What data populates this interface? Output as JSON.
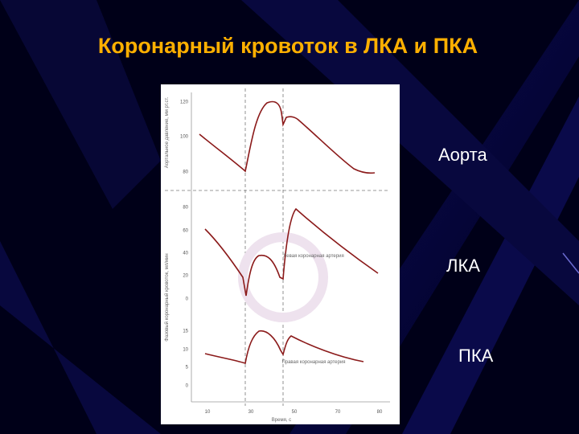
{
  "slide": {
    "title": "Коронарный кровоток  в ЛКА и ПКА",
    "labels": [
      "Аорта",
      "ЛКА",
      "ПКА"
    ]
  },
  "figure": {
    "y_label_top": "Аортальное давление, мм рт.ст.",
    "y_label_bottom": "Фазовый коронарный кровоток, мл/мин",
    "x_label": "Время, с",
    "aorta_ticks": [
      "120",
      "100",
      "80"
    ],
    "lca_ticks": [
      "80",
      "60",
      "40",
      "20",
      "0"
    ],
    "rca_ticks": [
      "15",
      "10",
      "5",
      "0"
    ],
    "x_ticks": [
      "10",
      "30",
      "50",
      "70",
      "80"
    ],
    "lca_note": "Левая коронарная артерия",
    "rca_note": "Правая коронарная артерия"
  }
}
